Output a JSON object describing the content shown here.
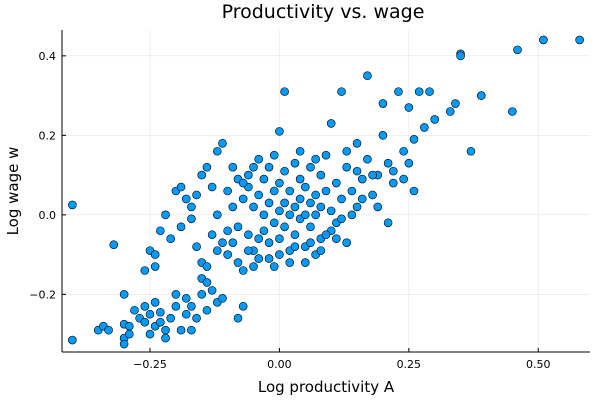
{
  "chart_data": {
    "type": "scatter",
    "title": "Productivity vs. wage",
    "xlabel": "Log productivity A",
    "ylabel": "Log wage w",
    "xlim": [
      -0.42,
      0.6
    ],
    "ylim": [
      -0.345,
      0.465
    ],
    "xticks": [
      -0.25,
      0.0,
      0.25,
      0.5
    ],
    "xtick_labels": [
      "−0.25",
      "0.00",
      "0.25",
      "0.50"
    ],
    "yticks": [
      -0.2,
      0.0,
      0.2,
      0.4
    ],
    "ytick_labels": [
      "−0.2",
      "0.0",
      "0.2",
      "0.4"
    ],
    "grid": true,
    "legend": "none",
    "marker_color": "#009AFA",
    "series": [
      {
        "points": [
          [
            -0.4,
            0.025
          ],
          [
            -0.4,
            -0.315
          ],
          [
            -0.32,
            -0.075
          ],
          [
            -0.35,
            -0.29
          ],
          [
            -0.34,
            -0.28
          ],
          [
            -0.33,
            -0.29
          ],
          [
            -0.3,
            -0.2
          ],
          [
            -0.3,
            -0.275
          ],
          [
            -0.3,
            -0.31
          ],
          [
            -0.3,
            -0.325
          ],
          [
            -0.29,
            -0.28
          ],
          [
            -0.29,
            -0.3
          ],
          [
            -0.28,
            -0.24
          ],
          [
            -0.27,
            -0.26
          ],
          [
            -0.26,
            -0.23
          ],
          [
            -0.26,
            -0.27
          ],
          [
            -0.25,
            -0.25
          ],
          [
            -0.25,
            -0.3
          ],
          [
            -0.24,
            -0.28
          ],
          [
            -0.24,
            -0.22
          ],
          [
            -0.23,
            -0.27
          ],
          [
            -0.23,
            -0.245
          ],
          [
            -0.22,
            -0.29
          ],
          [
            -0.22,
            -0.31
          ],
          [
            -0.21,
            -0.26
          ],
          [
            -0.2,
            -0.23
          ],
          [
            -0.2,
            -0.2
          ],
          [
            -0.19,
            -0.29
          ],
          [
            -0.18,
            -0.25
          ],
          [
            -0.18,
            -0.21
          ],
          [
            -0.17,
            -0.23
          ],
          [
            -0.17,
            -0.29
          ],
          [
            -0.16,
            -0.26
          ],
          [
            -0.15,
            -0.2
          ],
          [
            -0.14,
            -0.24
          ],
          [
            -0.13,
            -0.19
          ],
          [
            -0.12,
            -0.22
          ],
          [
            -0.11,
            -0.21
          ],
          [
            -0.08,
            -0.26
          ],
          [
            -0.07,
            -0.23
          ],
          [
            -0.26,
            -0.14
          ],
          [
            -0.25,
            -0.09
          ],
          [
            -0.24,
            -0.1
          ],
          [
            -0.24,
            -0.13
          ],
          [
            -0.23,
            -0.04
          ],
          [
            -0.22,
            0.0
          ],
          [
            -0.21,
            -0.06
          ],
          [
            -0.2,
            0.06
          ],
          [
            -0.19,
            0.07
          ],
          [
            -0.19,
            -0.03
          ],
          [
            -0.18,
            0.04
          ],
          [
            -0.17,
            -0.01
          ],
          [
            -0.16,
            0.05
          ],
          [
            -0.15,
            -0.12
          ],
          [
            -0.15,
            -0.16
          ],
          [
            -0.14,
            -0.17
          ],
          [
            -0.14,
            0.12
          ],
          [
            -0.13,
            -0.05
          ],
          [
            -0.12,
            0.0
          ],
          [
            -0.12,
            0.16
          ],
          [
            -0.11,
            0.18
          ],
          [
            -0.11,
            -0.07
          ],
          [
            -0.1,
            0.06
          ],
          [
            -0.1,
            -0.1
          ],
          [
            -0.09,
            0.12
          ],
          [
            -0.09,
            0.02
          ],
          [
            -0.08,
            -0.03
          ],
          [
            -0.08,
            0.09
          ],
          [
            -0.07,
            0.04
          ],
          [
            -0.07,
            -0.14
          ],
          [
            -0.06,
            0.1
          ],
          [
            -0.06,
            -0.05
          ],
          [
            -0.06,
            0.07
          ],
          [
            -0.05,
            0.02
          ],
          [
            -0.05,
            -0.09
          ],
          [
            -0.04,
            0.14
          ],
          [
            -0.04,
            0.05
          ],
          [
            -0.04,
            -0.11
          ],
          [
            -0.03,
            0.0
          ],
          [
            -0.03,
            0.09
          ],
          [
            -0.03,
            -0.04
          ],
          [
            -0.02,
            0.03
          ],
          [
            -0.02,
            0.12
          ],
          [
            -0.02,
            -0.07
          ],
          [
            -0.01,
            0.06
          ],
          [
            -0.01,
            -0.02
          ],
          [
            -0.01,
            0.15
          ],
          [
            0.0,
            0.01
          ],
          [
            0.0,
            -0.06
          ],
          [
            0.0,
            0.08
          ],
          [
            0.0,
            0.21
          ],
          [
            0.01,
            0.03
          ],
          [
            0.01,
            -0.03
          ],
          [
            0.01,
            0.11
          ],
          [
            0.02,
            0.0
          ],
          [
            0.02,
            0.06
          ],
          [
            0.02,
            -0.09
          ],
          [
            0.03,
            0.02
          ],
          [
            0.03,
            0.13
          ],
          [
            0.03,
            -0.05
          ],
          [
            0.04,
            0.04
          ],
          [
            0.04,
            -0.01
          ],
          [
            0.04,
            0.09
          ],
          [
            0.05,
            0.0
          ],
          [
            0.05,
            0.07
          ],
          [
            0.05,
            -0.08
          ],
          [
            0.06,
            0.03
          ],
          [
            0.06,
            0.12
          ],
          [
            0.06,
            -0.03
          ],
          [
            0.07,
            0.05
          ],
          [
            0.07,
            0.0
          ],
          [
            0.07,
            -0.1
          ],
          [
            0.08,
            0.1
          ],
          [
            0.08,
            0.02
          ],
          [
            0.08,
            -0.06
          ],
          [
            0.09,
            0.06
          ],
          [
            0.09,
            0.15
          ],
          [
            0.1,
            0.01
          ],
          [
            0.1,
            -0.04
          ],
          [
            0.1,
            0.23
          ],
          [
            0.11,
            0.08
          ],
          [
            0.11,
            -0.02
          ],
          [
            0.12,
            0.31
          ],
          [
            0.12,
            0.04
          ],
          [
            0.13,
            0.12
          ],
          [
            0.13,
            -0.07
          ],
          [
            0.14,
            0.06
          ],
          [
            0.15,
            0.02
          ],
          [
            0.15,
            0.18
          ],
          [
            0.16,
            0.09
          ],
          [
            0.17,
            0.14
          ],
          [
            0.17,
            0.35
          ],
          [
            0.18,
            0.05
          ],
          [
            0.19,
            0.1
          ],
          [
            0.2,
            0.28
          ],
          [
            0.2,
            0.2
          ],
          [
            0.21,
            0.13
          ],
          [
            0.21,
            -0.02
          ],
          [
            0.22,
            0.08
          ],
          [
            0.23,
            0.31
          ],
          [
            0.24,
            0.16
          ],
          [
            0.25,
            0.27
          ],
          [
            0.25,
            0.13
          ],
          [
            0.26,
            0.19
          ],
          [
            0.26,
            0.06
          ],
          [
            0.27,
            0.31
          ],
          [
            0.28,
            0.22
          ],
          [
            0.29,
            0.31
          ],
          [
            0.3,
            0.24
          ],
          [
            0.33,
            0.26
          ],
          [
            0.34,
            0.28
          ],
          [
            0.35,
            0.405
          ],
          [
            0.35,
            0.4
          ],
          [
            0.37,
            0.16
          ],
          [
            0.39,
            0.3
          ],
          [
            0.45,
            0.26
          ],
          [
            0.46,
            0.415
          ],
          [
            0.51,
            0.44
          ],
          [
            0.58,
            0.44
          ],
          [
            0.01,
            0.31
          ],
          [
            -0.15,
            0.1
          ],
          [
            -0.13,
            0.07
          ],
          [
            -0.17,
            0.02
          ],
          [
            -0.16,
            -0.08
          ],
          [
            -0.14,
            -0.13
          ],
          [
            -0.12,
            -0.09
          ],
          [
            -0.1,
            -0.04
          ],
          [
            -0.09,
            -0.07
          ],
          [
            -0.08,
            -0.12
          ],
          [
            -0.06,
            -0.09
          ],
          [
            -0.05,
            -0.13
          ],
          [
            -0.04,
            -0.06
          ],
          [
            -0.02,
            -0.11
          ],
          [
            -0.01,
            -0.13
          ],
          [
            0.0,
            -0.1
          ],
          [
            0.02,
            -0.12
          ],
          [
            0.03,
            -0.08
          ],
          [
            0.05,
            -0.12
          ],
          [
            0.06,
            -0.07
          ],
          [
            0.08,
            -0.09
          ],
          [
            0.09,
            -0.05
          ],
          [
            0.11,
            -0.06
          ],
          [
            0.12,
            -0.01
          ],
          [
            0.14,
            0.0
          ],
          [
            0.16,
            0.04
          ],
          [
            0.18,
            0.1
          ],
          [
            0.19,
            0.02
          ],
          [
            0.22,
            0.11
          ],
          [
            -0.07,
            0.08
          ],
          [
            -0.05,
            0.12
          ],
          [
            0.04,
            0.16
          ],
          [
            0.07,
            0.14
          ],
          [
            0.13,
            0.16
          ],
          [
            0.15,
            0.11
          ],
          [
            0.24,
            0.09
          ]
        ]
      }
    ]
  }
}
